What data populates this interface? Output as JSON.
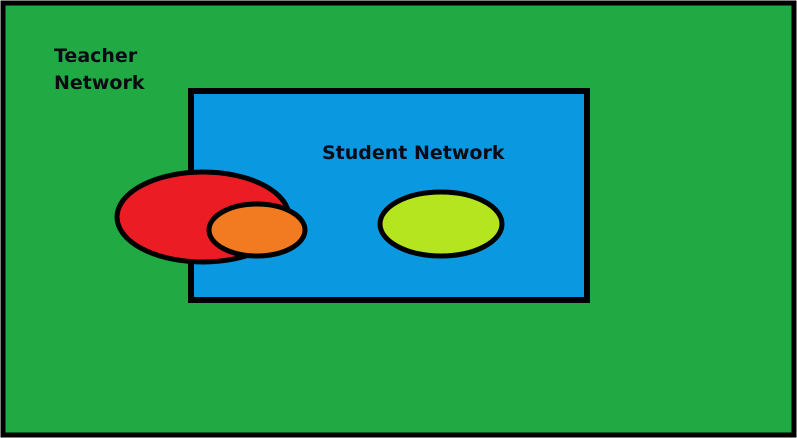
{
  "diagram": {
    "teacher_label_line1": "Teacher",
    "teacher_label_line2": "Network",
    "student_label": "Student Network",
    "colors": {
      "teacher_region": "#21aa44",
      "student_region": "#0a98e1",
      "red_ellipse": "#ec1c24",
      "orange_ellipse": "#f27b21",
      "lime_ellipse": "#b5e51e",
      "outline": "#000000"
    }
  }
}
